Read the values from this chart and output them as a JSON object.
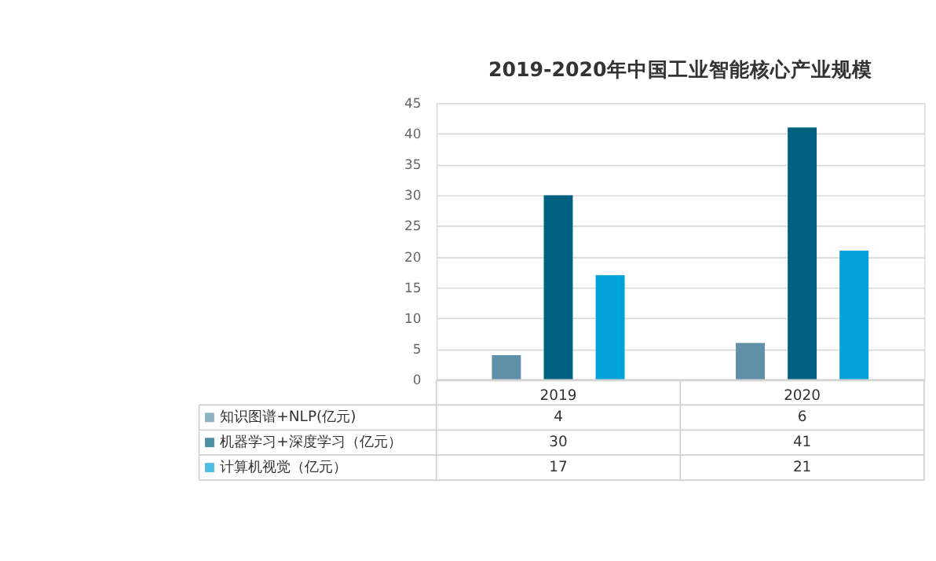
{
  "chart_data": {
    "type": "bar",
    "title": "2019-2020年中国工业智能核心产业规模",
    "categories": [
      "2019",
      "2020"
    ],
    "series": [
      {
        "name": "知识图谱+NLP(亿元)",
        "color": "#5f90a8",
        "values": [
          4,
          6
        ]
      },
      {
        "name": "机器学习+深度学习（亿元）",
        "color": "#00607f",
        "values": [
          30,
          41
        ]
      },
      {
        "name": "计算机视觉（亿元）",
        "color": "#00a2d9",
        "values": [
          17,
          21
        ]
      }
    ],
    "ylim": [
      0,
      45
    ],
    "yticks": [
      0,
      5,
      10,
      15,
      20,
      25,
      30,
      35,
      40,
      45
    ],
    "grid": "y",
    "legend": "bottom",
    "data_labels": true
  }
}
